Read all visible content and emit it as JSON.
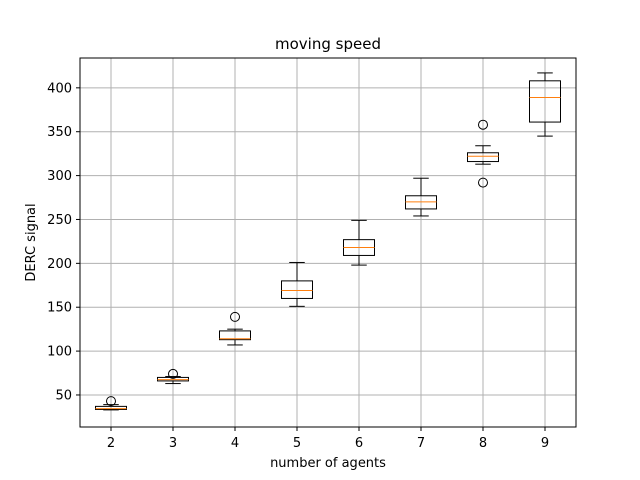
{
  "chart_data": {
    "type": "box",
    "title": "moving speed",
    "xlabel": "number of agents",
    "ylabel": "DERC signal",
    "grid": true,
    "ylim": [
      13.5,
      434
    ],
    "xlim": [
      1.5,
      9.5
    ],
    "x_ticks": [
      "2",
      "3",
      "4",
      "5",
      "6",
      "7",
      "8",
      "9"
    ],
    "y_ticks": [
      "50",
      "100",
      "150",
      "200",
      "250",
      "300",
      "350",
      "400"
    ],
    "colors": {
      "box": "#000000",
      "median": "#ff7f0e",
      "grid": "#b0b0b0"
    },
    "boxes": [
      {
        "category": "2",
        "whisker_low": 33,
        "q1": 33.5,
        "median": 34.5,
        "q3": 37,
        "whisker_high": 39,
        "fliers": [
          43
        ]
      },
      {
        "category": "3",
        "whisker_low": 63,
        "q1": 66,
        "median": 67.5,
        "q3": 70,
        "whisker_high": 71,
        "fliers": [
          74
        ]
      },
      {
        "category": "4",
        "whisker_low": 107,
        "q1": 113,
        "median": 114,
        "q3": 123,
        "whisker_high": 125,
        "fliers": [
          139
        ]
      },
      {
        "category": "5",
        "whisker_low": 151,
        "q1": 160,
        "median": 169,
        "q3": 180,
        "whisker_high": 201,
        "fliers": []
      },
      {
        "category": "6",
        "whisker_low": 198,
        "q1": 209,
        "median": 218,
        "q3": 227,
        "whisker_high": 249,
        "fliers": []
      },
      {
        "category": "7",
        "whisker_low": 254,
        "q1": 262,
        "median": 270,
        "q3": 277,
        "whisker_high": 297,
        "fliers": []
      },
      {
        "category": "8",
        "whisker_low": 313,
        "q1": 316,
        "median": 322,
        "q3": 326,
        "whisker_high": 334,
        "fliers": [
          292,
          358
        ]
      },
      {
        "category": "9",
        "whisker_low": 345,
        "q1": 361,
        "median": 389,
        "q3": 408,
        "whisker_high": 417,
        "fliers": []
      }
    ]
  }
}
